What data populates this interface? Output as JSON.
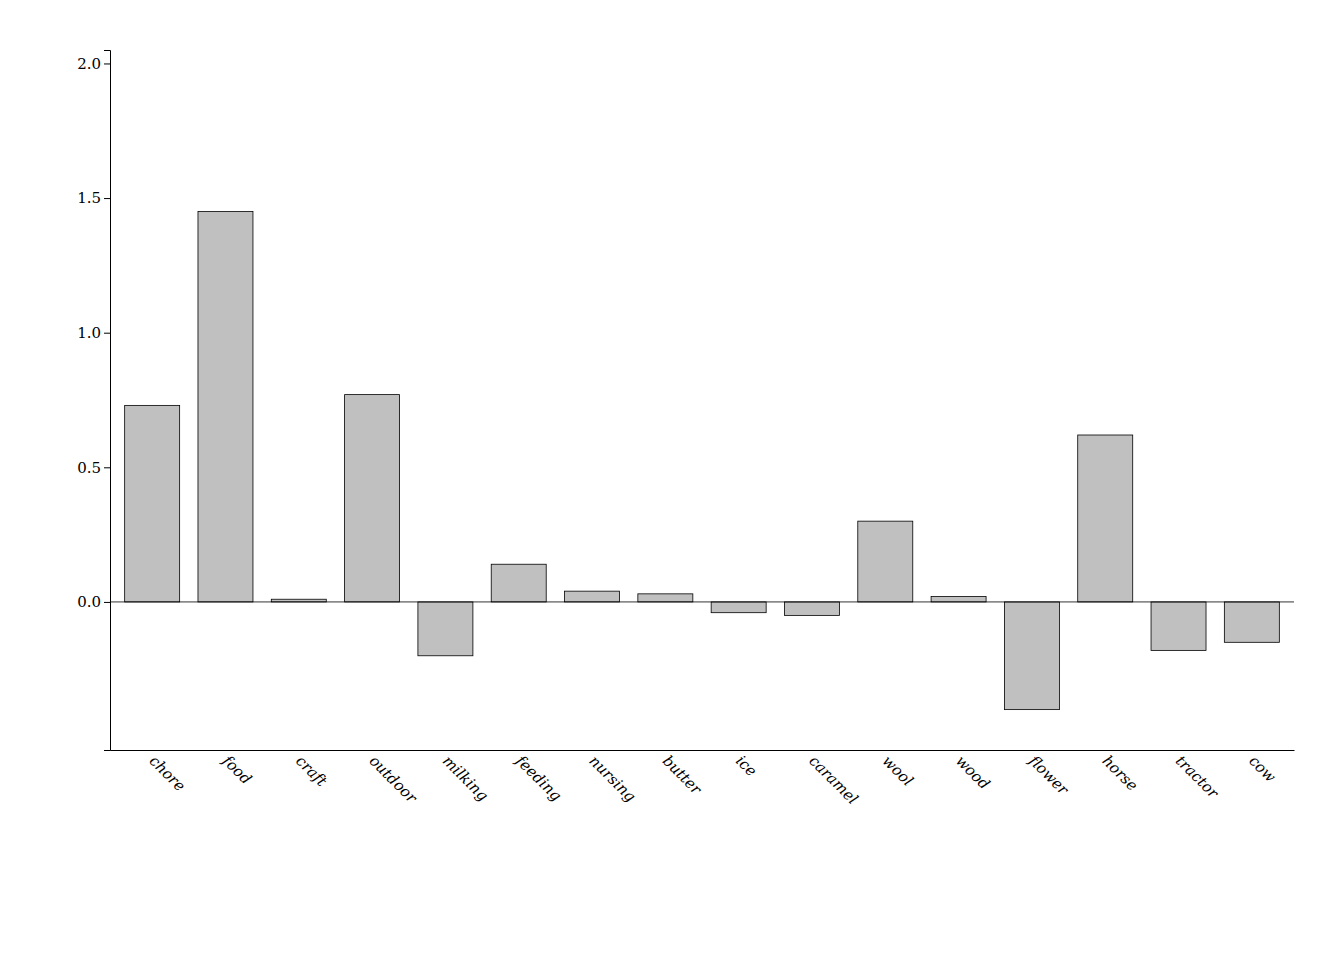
{
  "chart_data": {
    "type": "bar",
    "categories": [
      "chore",
      "food",
      "craft",
      "outdoor",
      "milking",
      "feeding",
      "nursing",
      "butter",
      "ice",
      "caramel",
      "wool",
      "wood",
      "flower",
      "horse",
      "tractor",
      "cow"
    ],
    "values": [
      0.73,
      1.45,
      0.01,
      0.77,
      -0.2,
      0.14,
      0.04,
      0.03,
      -0.04,
      -0.05,
      0.3,
      0.02,
      -0.4,
      0.62,
      -0.18,
      -0.15
    ],
    "color": "#c0c0c0",
    "ylim": [
      -0.55,
      2.05
    ],
    "yticks": [
      {
        "value": 0.0,
        "label": "0.0"
      },
      {
        "value": 0.5,
        "label": "0.5"
      },
      {
        "value": 1.0,
        "label": "1.0"
      },
      {
        "value": 1.5,
        "label": "1.5"
      },
      {
        "value": 2.0,
        "label": "2.0"
      }
    ],
    "grid": false
  }
}
